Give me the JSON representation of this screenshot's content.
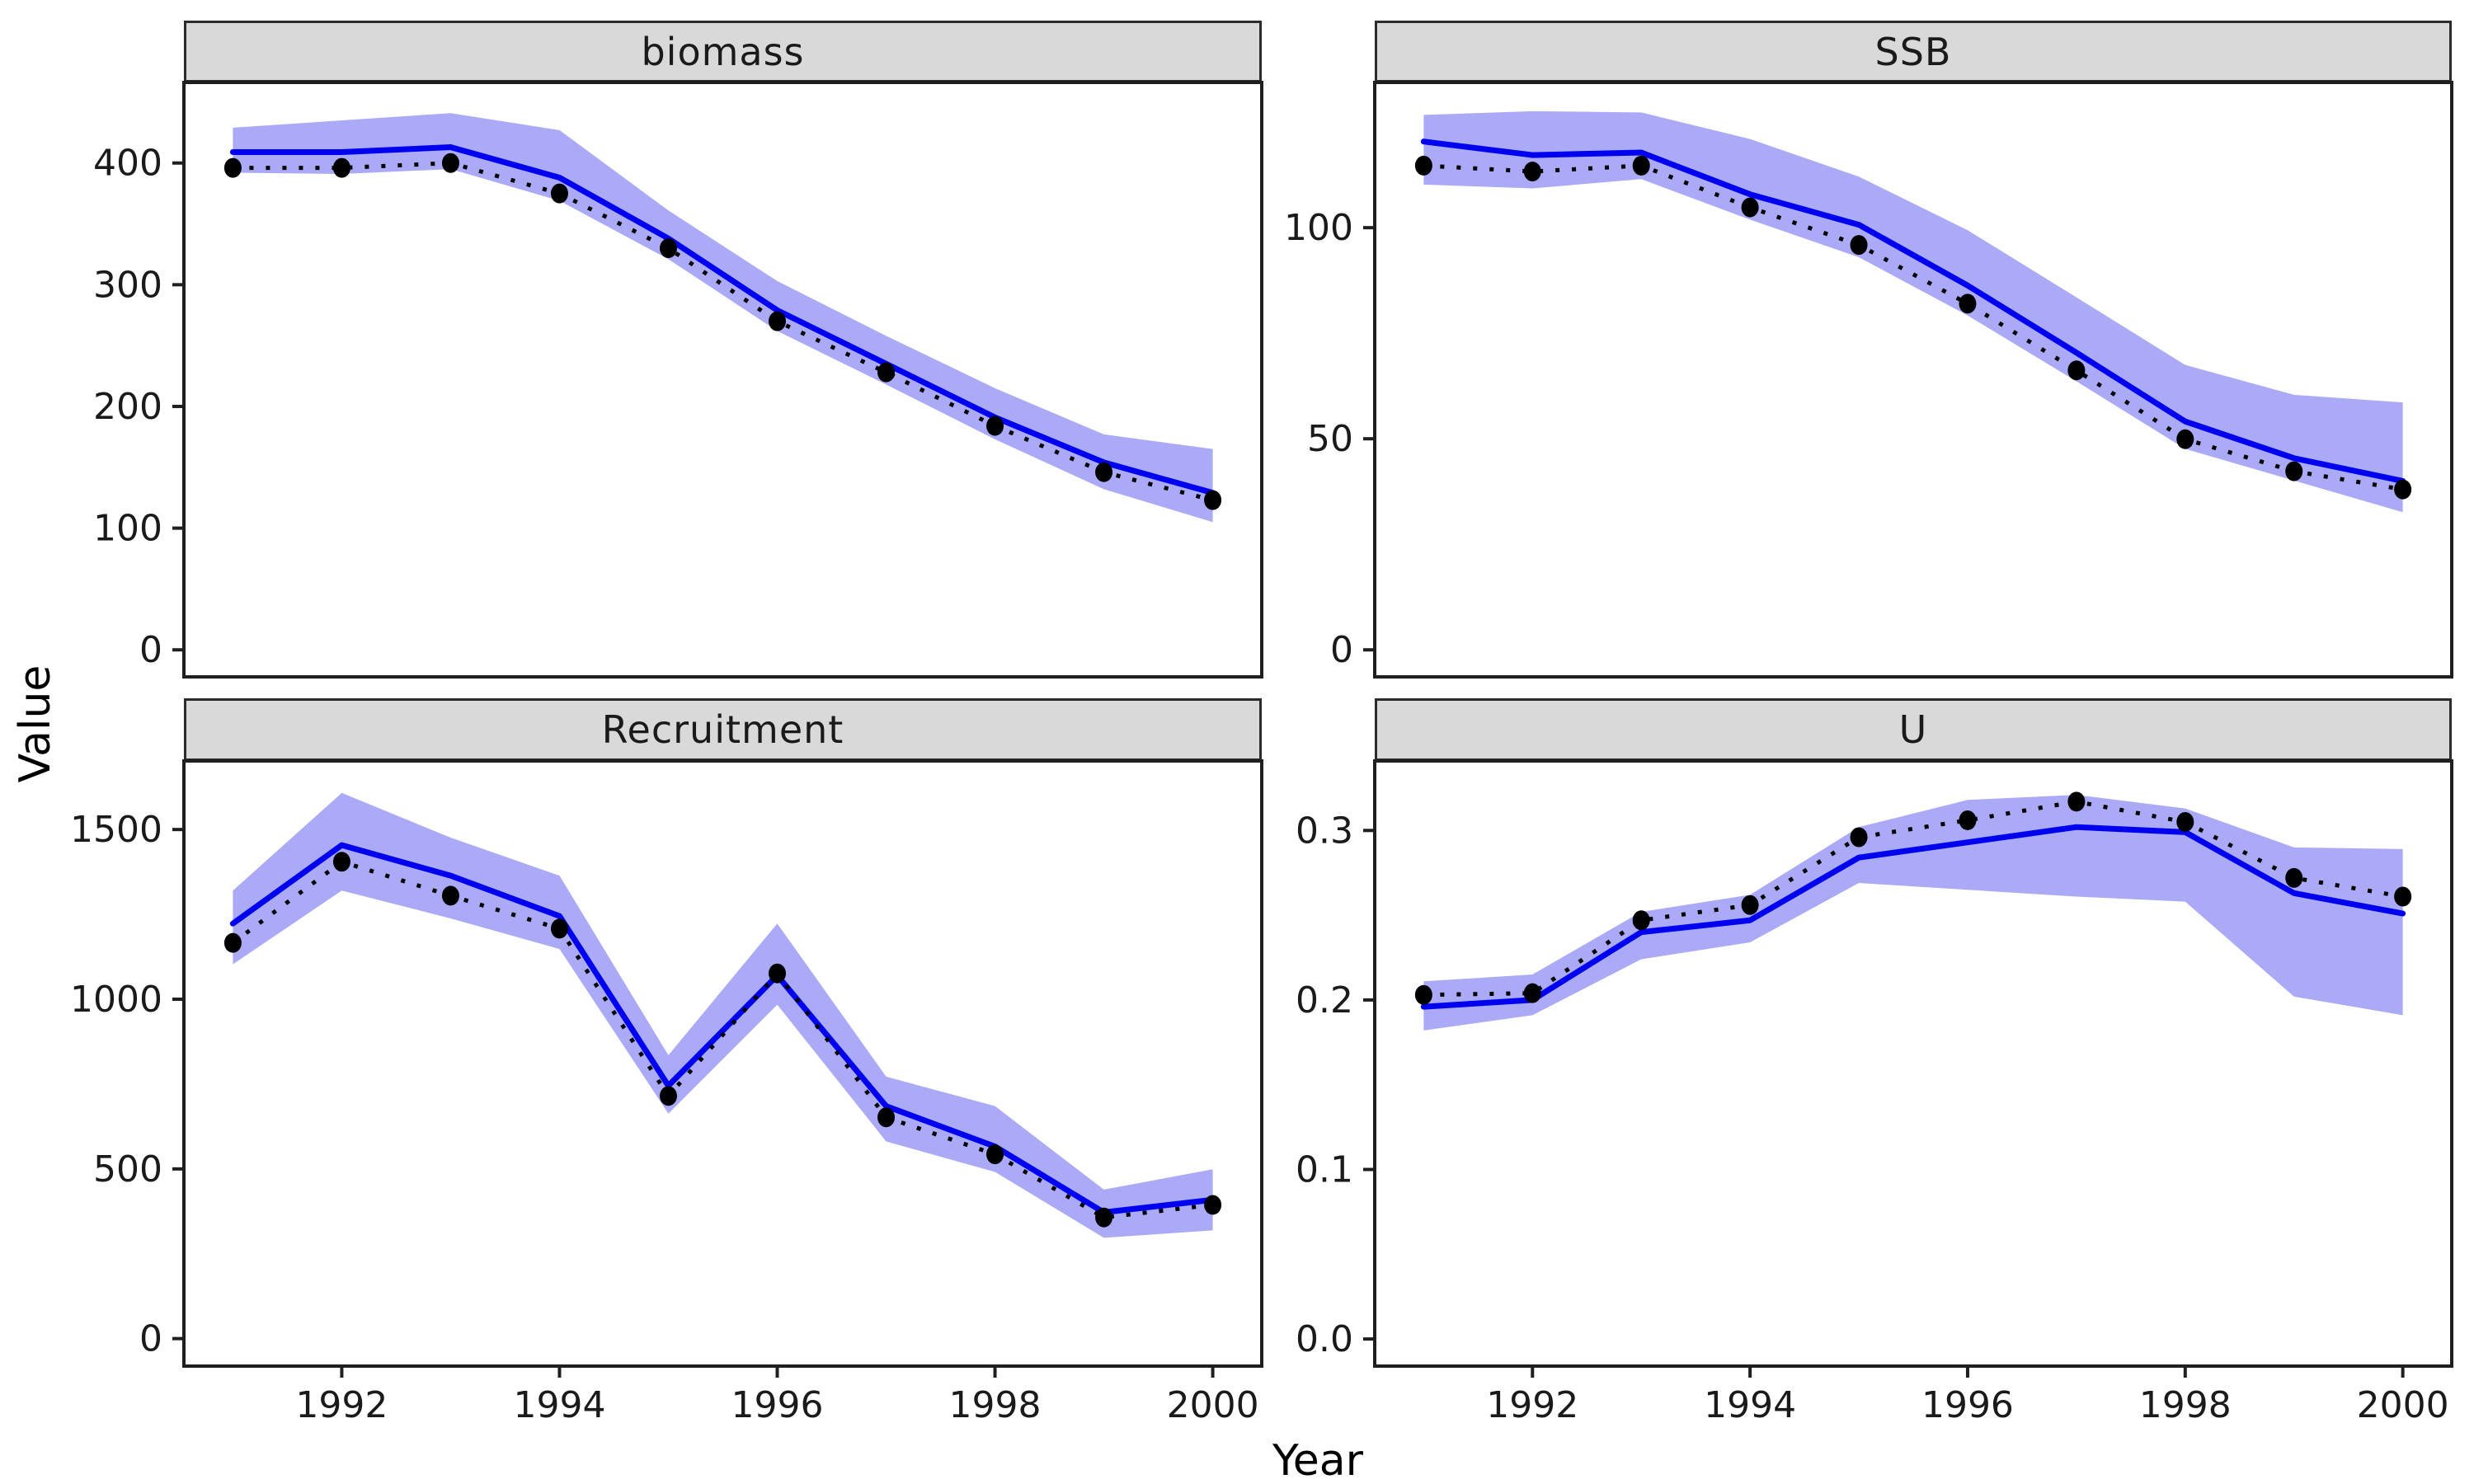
{
  "figure": {
    "y_axis_title": "Value",
    "x_axis_title": "Year",
    "x_ticks": [
      "1992",
      "1994",
      "1996",
      "1998",
      "2000"
    ],
    "colors": {
      "estimate_line": "#0000f0",
      "ribbon": "#aaaaf6",
      "observed": "#000000",
      "panel_border": "#1f1f1f",
      "strip_fill": "#d9d9d9",
      "strip_border": "#2b2b2b",
      "tick_text": "#1a1a1a"
    }
  },
  "chart_data": [
    {
      "type": "line",
      "title": "biomass",
      "xlabel": "Year",
      "ylabel": "Value",
      "grid": false,
      "legend": "none",
      "x": [
        1991,
        1992,
        1993,
        1994,
        1995,
        1996,
        1997,
        1998,
        1999,
        2000
      ],
      "xlim": [
        1990.55,
        2000.45
      ],
      "ylim": [
        -22.2,
        466.2
      ],
      "yticks": [
        "0",
        "100",
        "200",
        "300",
        "400"
      ],
      "series": [
        {
          "name": "estimate",
          "style": "solid-blue-line",
          "values": [
            409,
            409,
            413,
            388,
            338,
            279,
            235,
            191,
            154,
            129
          ]
        },
        {
          "name": "observed",
          "style": "black-dotted-line-with-points",
          "values": [
            396,
            396,
            400,
            375,
            330,
            270,
            228,
            184,
            146,
            123
          ]
        }
      ],
      "ribbon": {
        "name": "confidence-band",
        "upper": [
          429,
          435,
          441,
          427,
          361,
          303,
          258,
          215,
          177,
          165
        ],
        "lower": [
          392,
          391,
          395,
          369,
          321,
          262,
          218,
          173,
          132,
          105
        ]
      }
    },
    {
      "type": "line",
      "title": "SSB",
      "xlabel": "Year",
      "ylabel": "Value",
      "grid": false,
      "legend": "none",
      "x": [
        1991,
        1992,
        1993,
        1994,
        1995,
        1996,
        1997,
        1998,
        1999,
        2000
      ],
      "xlim": [
        1990.55,
        2000.45
      ],
      "ylim": [
        -6.4,
        134.4
      ],
      "yticks": [
        "0",
        "50",
        "100"
      ],
      "series": [
        {
          "name": "estimate",
          "style": "solid-blue-line",
          "values": [
            120.4,
            117.2,
            117.8,
            107.9,
            100.7,
            86.3,
            70.4,
            54.1,
            45.4,
            40.0
          ]
        },
        {
          "name": "observed",
          "style": "black-dotted-line-with-points",
          "values": [
            114.7,
            113.3,
            114.7,
            104.8,
            95.9,
            82.0,
            66.2,
            49.9,
            42.3,
            38.0
          ]
        }
      ],
      "ribbon": {
        "name": "confidence-band",
        "upper": [
          126.7,
          127.6,
          127.3,
          121.0,
          112.1,
          99.4,
          83.5,
          67.5,
          60.4,
          58.6
        ],
        "lower": [
          110.2,
          109.3,
          111.5,
          101.9,
          93.0,
          79.2,
          63.6,
          47.6,
          40.1,
          32.6
        ]
      }
    },
    {
      "type": "line",
      "title": "Recruitment",
      "xlabel": "Year",
      "ylabel": "Value",
      "grid": false,
      "legend": "none",
      "x": [
        1991,
        1992,
        1993,
        1994,
        1995,
        1996,
        1997,
        1998,
        1999,
        2000
      ],
      "xlim": [
        1990.55,
        2000.45
      ],
      "ylim": [
        -81,
        1702
      ],
      "yticks": [
        "0",
        "500",
        "1000",
        "1500"
      ],
      "series": [
        {
          "name": "estimate",
          "style": "solid-blue-line",
          "values": [
            1223,
            1454,
            1364,
            1245,
            745,
            1070,
            685,
            566,
            372,
            409
          ]
        },
        {
          "name": "observed",
          "style": "black-dotted-line-with-points",
          "values": [
            1166,
            1405,
            1305,
            1208,
            715,
            1076,
            652,
            543,
            357,
            394
          ]
        }
      ],
      "ribbon": {
        "name": "confidence-band",
        "upper": [
          1320,
          1608,
          1476,
          1364,
          835,
          1223,
          772,
          685,
          439,
          499
        ],
        "lower": [
          1103,
          1320,
          1238,
          1148,
          663,
          984,
          581,
          491,
          297,
          319
        ]
      }
    },
    {
      "type": "line",
      "title": "U",
      "xlabel": "Year",
      "ylabel": "Value",
      "grid": false,
      "legend": "none",
      "x": [
        1991,
        1992,
        1993,
        1994,
        1995,
        1996,
        1997,
        1998,
        1999,
        2000
      ],
      "xlim": [
        1990.55,
        2000.45
      ],
      "ylim": [
        -0.016,
        0.341
      ],
      "yticks": [
        "0.0",
        "0.1",
        "0.2",
        "0.3"
      ],
      "series": [
        {
          "name": "estimate",
          "style": "solid-blue-line",
          "values": [
            0.196,
            0.2,
            0.24,
            0.247,
            0.284,
            0.293,
            0.302,
            0.299,
            0.263,
            0.251
          ]
        },
        {
          "name": "observed",
          "style": "black-dotted-line-with-points",
          "values": [
            0.203,
            0.204,
            0.247,
            0.256,
            0.296,
            0.306,
            0.317,
            0.305,
            0.272,
            0.261
          ]
        }
      ],
      "ribbon": {
        "name": "confidence-band",
        "upper": [
          0.211,
          0.215,
          0.252,
          0.262,
          0.302,
          0.318,
          0.321,
          0.313,
          0.29,
          0.289
        ],
        "lower": [
          0.182,
          0.191,
          0.224,
          0.234,
          0.269,
          0.265,
          0.261,
          0.258,
          0.202,
          0.191
        ]
      }
    }
  ]
}
